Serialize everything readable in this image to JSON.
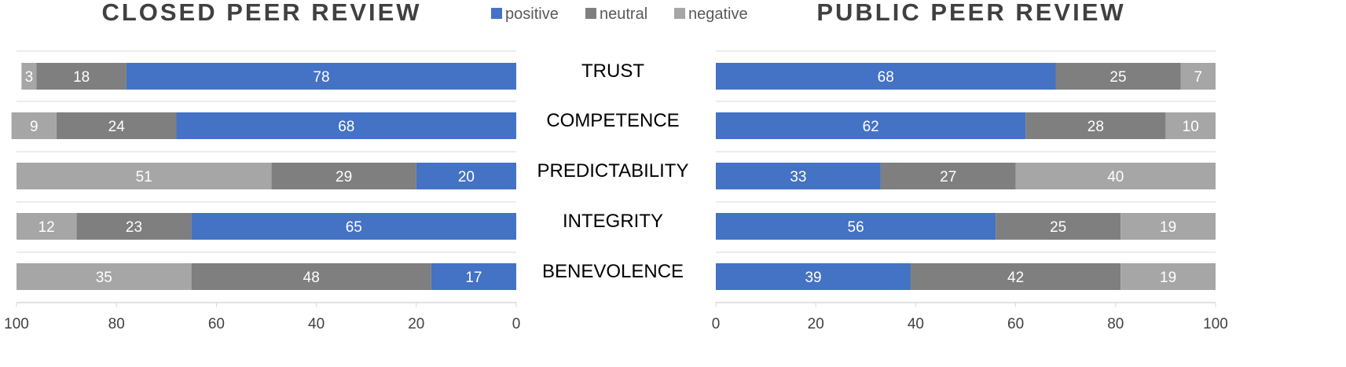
{
  "legend": [
    {
      "name": "positive",
      "color": "#4472C4"
    },
    {
      "name": "neutral",
      "color": "#7F7F7F"
    },
    {
      "name": "negative",
      "color": "#A6A6A6"
    }
  ],
  "chart_data": [
    {
      "type": "bar",
      "orientation": "horizontal-stacked",
      "title": "CLOSED PEER REVIEW",
      "x_reversed": true,
      "xlim": [
        0,
        100
      ],
      "x_ticks": [
        100,
        80,
        60,
        40,
        20,
        0
      ],
      "grid": true,
      "legend_position": "top-center",
      "categories": [
        "TRUST",
        "COMPETENCE",
        "PREDICTABILITY",
        "INTEGRITY",
        "BENEVOLENCE"
      ],
      "series": [
        {
          "name": "positive",
          "values": [
            78,
            68,
            20,
            65,
            17
          ]
        },
        {
          "name": "neutral",
          "values": [
            18,
            24,
            29,
            23,
            48
          ]
        },
        {
          "name": "negative",
          "values": [
            3,
            9,
            51,
            12,
            35
          ]
        }
      ]
    },
    {
      "type": "bar",
      "orientation": "horizontal-stacked",
      "title": "PUBLIC PEER REVIEW",
      "x_reversed": false,
      "xlim": [
        0,
        100
      ],
      "x_ticks": [
        0,
        20,
        40,
        60,
        80,
        100
      ],
      "grid": true,
      "legend_position": "top-center",
      "categories": [
        "TRUST",
        "COMPETENCE",
        "PREDICTABILITY",
        "INTEGRITY",
        "BENEVOLENCE"
      ],
      "series": [
        {
          "name": "positive",
          "values": [
            68,
            62,
            33,
            56,
            39
          ]
        },
        {
          "name": "neutral",
          "values": [
            25,
            28,
            27,
            25,
            42
          ]
        },
        {
          "name": "negative",
          "values": [
            7,
            10,
            40,
            19,
            19
          ]
        }
      ]
    }
  ]
}
